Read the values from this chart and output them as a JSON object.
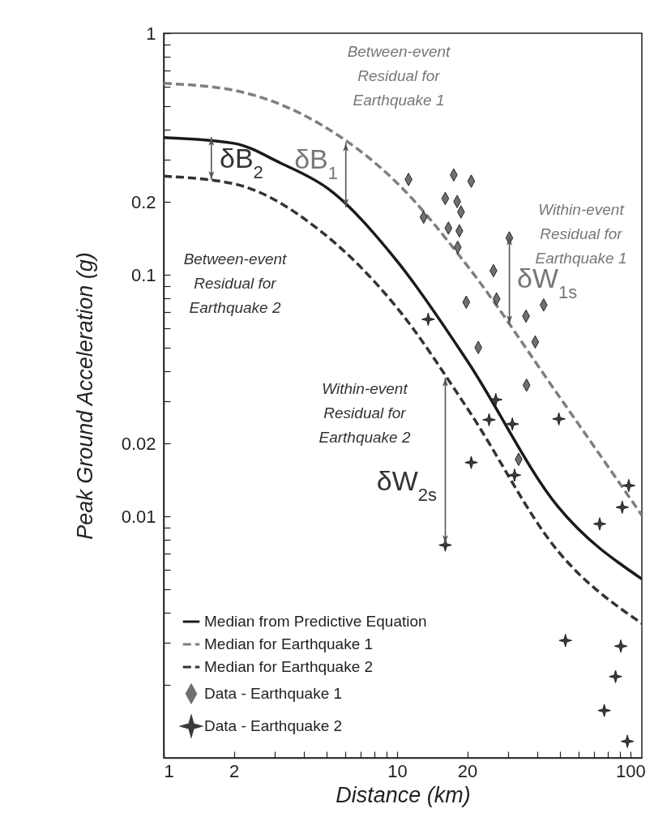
{
  "chart_data": {
    "type": "line",
    "xlabel": "Distance (km)",
    "ylabel": "Peak Ground Acceleration (g)",
    "log": "xy",
    "legend": "bottom left",
    "xlim": [
      1,
      112
    ],
    "ylim": [
      0.001,
      1
    ],
    "xticks": [
      1,
      2,
      {
        "value": 3,
        "label": null
      },
      {
        "value": 4,
        "label": null
      },
      {
        "value": 5,
        "label": null
      },
      {
        "value": 6,
        "label": null
      },
      {
        "value": 7,
        "label": null
      },
      {
        "value": 8,
        "label": null
      },
      {
        "value": 9,
        "label": null
      },
      10,
      20,
      {
        "value": 30,
        "label": null
      },
      {
        "value": 40,
        "label": null
      },
      {
        "value": 50,
        "label": null
      },
      {
        "value": 60,
        "label": null
      },
      {
        "value": 70,
        "label": null
      },
      {
        "value": 80,
        "label": null
      },
      {
        "value": 90,
        "label": null
      },
      100
    ],
    "yticks": [
      {
        "value": 0.002,
        "label": null
      },
      {
        "value": 0.003,
        "label": null
      },
      {
        "value": 0.004,
        "label": null
      },
      {
        "value": 0.005,
        "label": null
      },
      {
        "value": 0.006,
        "label": null
      },
      {
        "value": 0.007,
        "label": null
      },
      {
        "value": 0.008,
        "label": null
      },
      {
        "value": 0.009,
        "label": null
      },
      0.01,
      0.02,
      {
        "value": 0.03,
        "label": null
      },
      {
        "value": 0.04,
        "label": null
      },
      {
        "value": 0.05,
        "label": null
      },
      {
        "value": 0.06,
        "label": null
      },
      {
        "value": 0.07,
        "label": null
      },
      {
        "value": 0.08,
        "label": null
      },
      {
        "value": 0.09,
        "label": null
      },
      0.1,
      0.2,
      {
        "value": 0.3,
        "label": null
      },
      {
        "value": 0.4,
        "label": null
      },
      {
        "value": 0.5,
        "label": null
      },
      {
        "value": 0.6,
        "label": null
      },
      {
        "value": 0.7,
        "label": null
      },
      {
        "value": 0.8,
        "label": null
      },
      {
        "value": 0.9,
        "label": null
      },
      1
    ],
    "series": [
      {
        "name": "Median from Predictive Equation",
        "line_style": "solid",
        "color": "#1a1a1a",
        "x": [
          1,
          2,
          3.17,
          5.07,
          10,
          20,
          48.8,
          112
        ],
        "values": [
          0.37,
          0.35,
          0.29,
          0.227,
          0.114,
          0.044,
          0.011,
          0.0055
        ]
      },
      {
        "name": "Median for Earthquake 1",
        "line_style": "dashed",
        "color": "#7f7f7f",
        "x": [
          1,
          2,
          4.69,
          10,
          20,
          48.8,
          112
        ],
        "values": [
          0.62,
          0.58,
          0.42,
          0.24,
          0.109,
          0.032,
          0.0101
        ]
      },
      {
        "name": "Median for Earthquake 2",
        "line_style": "dashed",
        "color": "#333333",
        "x": [
          1,
          2,
          4.69,
          10,
          20,
          48.8,
          112
        ],
        "values": [
          0.256,
          0.238,
          0.152,
          0.073,
          0.028,
          0.0072,
          0.0036
        ]
      },
      {
        "name": "Data - Earthquake 1",
        "type": "scatter",
        "marker": "diamond",
        "color": "#707070",
        "x": [
          11.2,
          17.5,
          20.8,
          16.1,
          18.1,
          18.8,
          13.0,
          16.6,
          18.5,
          18.2,
          30.3,
          25.9,
          26.7,
          19.8,
          42.5,
          35.7,
          39.1,
          22.3,
          35.9,
          33.2
        ],
        "values": [
          0.248,
          0.259,
          0.244,
          0.207,
          0.201,
          0.182,
          0.173,
          0.156,
          0.152,
          0.13,
          0.142,
          0.104,
          0.0794,
          0.077,
          0.075,
          0.0674,
          0.0527,
          0.05,
          0.0349,
          0.0172
        ]
      },
      {
        "name": "Data - Earthquake 2",
        "type": "scatter",
        "marker": "star",
        "color": "#3a3a3a",
        "x": [
          13.6,
          26.5,
          24.8,
          31.2,
          49.4,
          20.8,
          31.9,
          16.1,
          98.4,
          92.3,
          73.9,
          52.7,
          91.0,
          86.4,
          77.3,
          97.1
        ],
        "values": [
          0.0654,
          0.0304,
          0.0251,
          0.0241,
          0.0253,
          0.0167,
          0.0148,
          0.0076,
          0.0134,
          0.0109,
          0.0093,
          0.00306,
          0.0029,
          0.00217,
          0.00157,
          0.00117
        ]
      }
    ],
    "annotations": [
      "Between-event\nResidual for\nEarthquake 1",
      "Between-event\nResidual for\nEarthquake 2",
      "Within-event\nResidual for\nEarthquake 1",
      "Within-event\nResidual for\nEarthquake 2",
      "δB$_{1}$",
      "δB$_{2}$",
      "δW$_{1s}$",
      "δW$_{2s}$"
    ]
  }
}
